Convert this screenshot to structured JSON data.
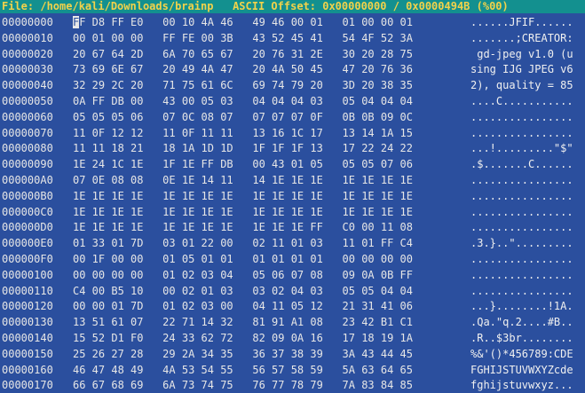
{
  "status_bar": {
    "text": "File: /home/kali/Downloads/brainp   ASCII Offset: 0x00000000 / 0x0000494B (%00)"
  },
  "colors": {
    "background": "#2b4f9e",
    "status_bar_bg": "#13908f",
    "status_bar_fg": "#f2d24a",
    "text": "#e6e6e6"
  },
  "rows": [
    {
      "offset": "00000000",
      "groups": [
        "FF D8 FF E0",
        "00 10 4A 46",
        "49 46 00 01",
        "01 00 00 01"
      ],
      "ascii": "......JFIF......"
    },
    {
      "offset": "00000010",
      "groups": [
        "00 01 00 00",
        "FF FE 00 3B",
        "43 52 45 41",
        "54 4F 52 3A"
      ],
      "ascii": ".......;CREATOR:"
    },
    {
      "offset": "00000020",
      "groups": [
        "20 67 64 2D",
        "6A 70 65 67",
        "20 76 31 2E",
        "30 20 28 75"
      ],
      "ascii": " gd-jpeg v1.0 (u"
    },
    {
      "offset": "00000030",
      "groups": [
        "73 69 6E 67",
        "20 49 4A 47",
        "20 4A 50 45",
        "47 20 76 36"
      ],
      "ascii": "sing IJG JPEG v6"
    },
    {
      "offset": "00000040",
      "groups": [
        "32 29 2C 20",
        "71 75 61 6C",
        "69 74 79 20",
        "3D 20 38 35"
      ],
      "ascii": "2), quality = 85"
    },
    {
      "offset": "00000050",
      "groups": [
        "0A FF DB 00",
        "43 00 05 03",
        "04 04 04 03",
        "05 04 04 04"
      ],
      "ascii": "....C..........."
    },
    {
      "offset": "00000060",
      "groups": [
        "05 05 05 06",
        "07 0C 08 07",
        "07 07 07 0F",
        "0B 0B 09 0C"
      ],
      "ascii": "................"
    },
    {
      "offset": "00000070",
      "groups": [
        "11 0F 12 12",
        "11 0F 11 11",
        "13 16 1C 17",
        "13 14 1A 15"
      ],
      "ascii": "................"
    },
    {
      "offset": "00000080",
      "groups": [
        "11 11 18 21",
        "18 1A 1D 1D",
        "1F 1F 1F 13",
        "17 22 24 22"
      ],
      "ascii": "...!.........\"$\""
    },
    {
      "offset": "00000090",
      "groups": [
        "1E 24 1C 1E",
        "1F 1E FF DB",
        "00 43 01 05",
        "05 05 07 06"
      ],
      "ascii": ".$.......C......"
    },
    {
      "offset": "000000A0",
      "groups": [
        "07 0E 08 08",
        "0E 1E 14 11",
        "14 1E 1E 1E",
        "1E 1E 1E 1E"
      ],
      "ascii": "................"
    },
    {
      "offset": "000000B0",
      "groups": [
        "1E 1E 1E 1E",
        "1E 1E 1E 1E",
        "1E 1E 1E 1E",
        "1E 1E 1E 1E"
      ],
      "ascii": "................"
    },
    {
      "offset": "000000C0",
      "groups": [
        "1E 1E 1E 1E",
        "1E 1E 1E 1E",
        "1E 1E 1E 1E",
        "1E 1E 1E 1E"
      ],
      "ascii": "................"
    },
    {
      "offset": "000000D0",
      "groups": [
        "1E 1E 1E 1E",
        "1E 1E 1E 1E",
        "1E 1E 1E FF",
        "C0 00 11 08"
      ],
      "ascii": "................"
    },
    {
      "offset": "000000E0",
      "groups": [
        "01 33 01 7D",
        "03 01 22 00",
        "02 11 01 03",
        "11 01 FF C4"
      ],
      "ascii": ".3.}..\"........."
    },
    {
      "offset": "000000F0",
      "groups": [
        "00 1F 00 00",
        "01 05 01 01",
        "01 01 01 01",
        "00 00 00 00"
      ],
      "ascii": "................"
    },
    {
      "offset": "00000100",
      "groups": [
        "00 00 00 00",
        "01 02 03 04",
        "05 06 07 08",
        "09 0A 0B FF"
      ],
      "ascii": "................"
    },
    {
      "offset": "00000110",
      "groups": [
        "C4 00 B5 10",
        "00 02 01 03",
        "03 02 04 03",
        "05 05 04 04"
      ],
      "ascii": "................"
    },
    {
      "offset": "00000120",
      "groups": [
        "00 00 01 7D",
        "01 02 03 00",
        "04 11 05 12",
        "21 31 41 06"
      ],
      "ascii": "...}........!1A."
    },
    {
      "offset": "00000130",
      "groups": [
        "13 51 61 07",
        "22 71 14 32",
        "81 91 A1 08",
        "23 42 B1 C1"
      ],
      "ascii": ".Qa.\"q.2....#B.."
    },
    {
      "offset": "00000140",
      "groups": [
        "15 52 D1 F0",
        "24 33 62 72",
        "82 09 0A 16",
        "17 18 19 1A"
      ],
      "ascii": ".R..$3br........"
    },
    {
      "offset": "00000150",
      "groups": [
        "25 26 27 28",
        "29 2A 34 35",
        "36 37 38 39",
        "3A 43 44 45"
      ],
      "ascii": "%&'()*456789:CDE"
    },
    {
      "offset": "00000160",
      "groups": [
        "46 47 48 49",
        "4A 53 54 55",
        "56 57 58 59",
        "5A 63 64 65"
      ],
      "ascii": "FGHIJSTUVWXYZcde"
    },
    {
      "offset": "00000170",
      "groups": [
        "66 67 68 69",
        "6A 73 74 75",
        "76 77 78 79",
        "7A 83 84 85"
      ],
      "ascii": "fghijstuvwxyz..."
    }
  ]
}
